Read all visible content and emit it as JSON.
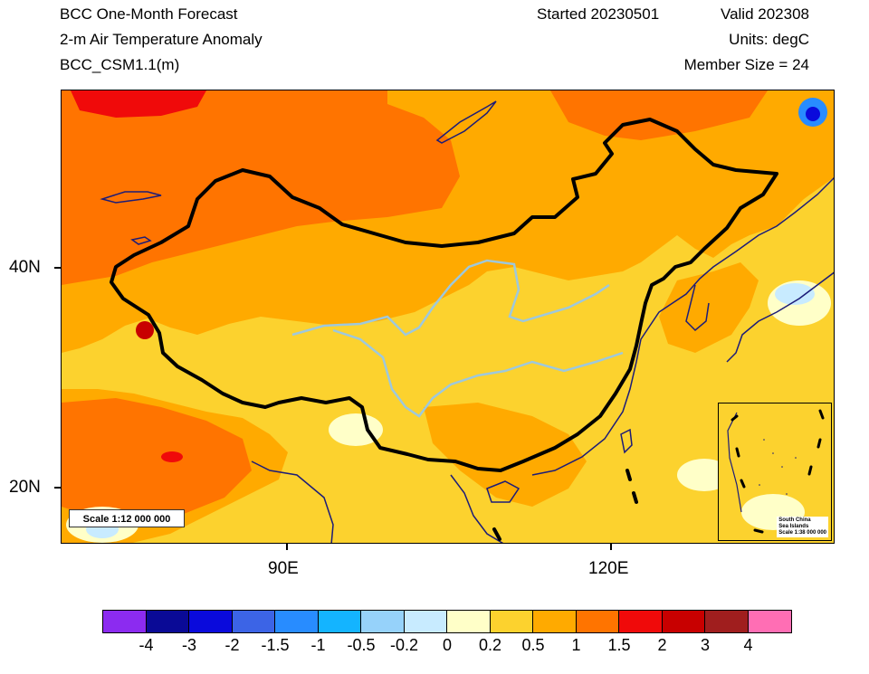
{
  "header": {
    "line1": "BCC One-Month Forecast",
    "line2": "2-m Air Temperature Anomaly",
    "line3": "BCC_CSM1.1(m)",
    "started": "Started 20230501",
    "valid": "Valid 202308",
    "units": "Units: degC",
    "members": "Member Size = 24"
  },
  "map": {
    "lat_labels": [
      "40N",
      "20N"
    ],
    "lon_labels": [
      "90E",
      "120E"
    ],
    "scale_label": "Scale 1:12 000 000",
    "inset": {
      "line1": "South China",
      "line2": "Sea Islands",
      "line3": "Scale 1:38 000 000"
    }
  },
  "colorbar": {
    "colors": [
      "#8c2bf0",
      "#0a0a96",
      "#0a0adc",
      "#3c64e6",
      "#288cff",
      "#14b4ff",
      "#96d2fa",
      "#c8ebff",
      "#ffffc8",
      "#fcd22e",
      "#ffaa00",
      "#ff7400",
      "#f00a0a",
      "#c80000",
      "#a01e1e",
      "#ff6eb4"
    ],
    "labels": [
      "-4",
      "-3",
      "-2",
      "-1.5",
      "-1",
      "-0.5",
      "-0.2",
      "0",
      "0.2",
      "0.5",
      "1",
      "1.5",
      "2",
      "3",
      "4"
    ]
  }
}
